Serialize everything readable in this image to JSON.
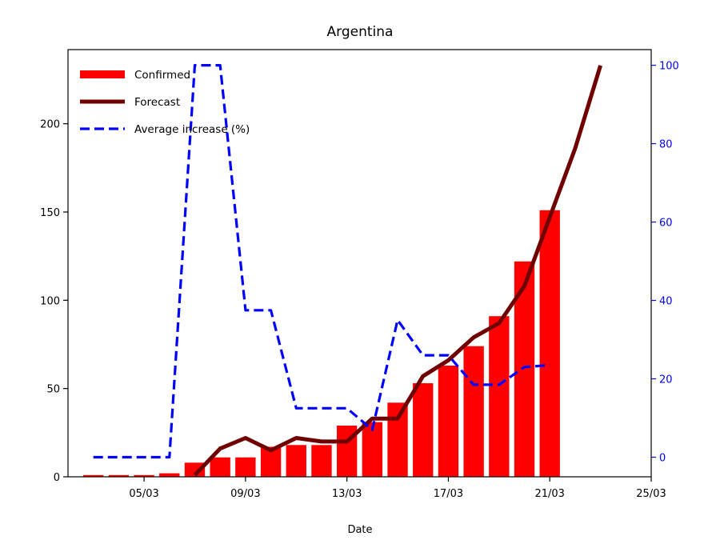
{
  "chart_data": {
    "type": "bar",
    "title": "Argentina",
    "xlabel": "Date",
    "ylabel": "",
    "ylabel_right": "",
    "x_ticks": [
      "05/03",
      "09/03",
      "13/03",
      "17/03",
      "21/03",
      "25/03"
    ],
    "y_ticks_left": [
      "0",
      "50",
      "100",
      "150",
      "200"
    ],
    "y_ticks_right": [
      "0",
      "20",
      "40",
      "60",
      "80",
      "100"
    ],
    "xlim": [
      "2020-03-02",
      "2020-03-25"
    ],
    "ylim_left": [
      0,
      242
    ],
    "ylim_right": [
      -5,
      104
    ],
    "legend_position": "top-left",
    "grid": false,
    "series": [
      {
        "name": "Confirmed",
        "kind": "bar",
        "axis": "left",
        "color": "#ff0000",
        "x": [
          "2020-03-03",
          "2020-03-04",
          "2020-03-05",
          "2020-03-06",
          "2020-03-07",
          "2020-03-08",
          "2020-03-09",
          "2020-03-10",
          "2020-03-11",
          "2020-03-12",
          "2020-03-13",
          "2020-03-14",
          "2020-03-15",
          "2020-03-16",
          "2020-03-17",
          "2020-03-18",
          "2020-03-19",
          "2020-03-20",
          "2020-03-21"
        ],
        "values": [
          1,
          1,
          1,
          2,
          8,
          11,
          11,
          17,
          18,
          18,
          29,
          31,
          42,
          53,
          63,
          74,
          91,
          122,
          151
        ]
      },
      {
        "name": "Forecast",
        "kind": "line",
        "axis": "left",
        "color": "#700000",
        "x": [
          "2020-03-07",
          "2020-03-08",
          "2020-03-09",
          "2020-03-10",
          "2020-03-11",
          "2020-03-12",
          "2020-03-13",
          "2020-03-14",
          "2020-03-15",
          "2020-03-16",
          "2020-03-17",
          "2020-03-18",
          "2020-03-19",
          "2020-03-20",
          "2020-03-21",
          "2020-03-22",
          "2020-03-23"
        ],
        "values": [
          1,
          16,
          22,
          15,
          22,
          20,
          20,
          33,
          33,
          57,
          66,
          79,
          87,
          108,
          147,
          186,
          233
        ]
      },
      {
        "name": "Average increase (%)",
        "kind": "dashed-line",
        "axis": "right",
        "color": "#0000ff",
        "x": [
          "2020-03-03",
          "2020-03-04",
          "2020-03-05",
          "2020-03-06",
          "2020-03-07",
          "2020-03-08",
          "2020-03-09",
          "2020-03-10",
          "2020-03-11",
          "2020-03-12",
          "2020-03-13",
          "2020-03-14",
          "2020-03-15",
          "2020-03-16",
          "2020-03-17",
          "2020-03-18",
          "2020-03-19",
          "2020-03-20",
          "2020-03-21"
        ],
        "values": [
          0,
          0,
          0,
          0,
          100,
          100,
          37.5,
          37.5,
          12.5,
          12.5,
          12.5,
          7,
          35,
          26,
          26,
          18.5,
          18.5,
          23,
          23.5
        ]
      }
    ]
  }
}
